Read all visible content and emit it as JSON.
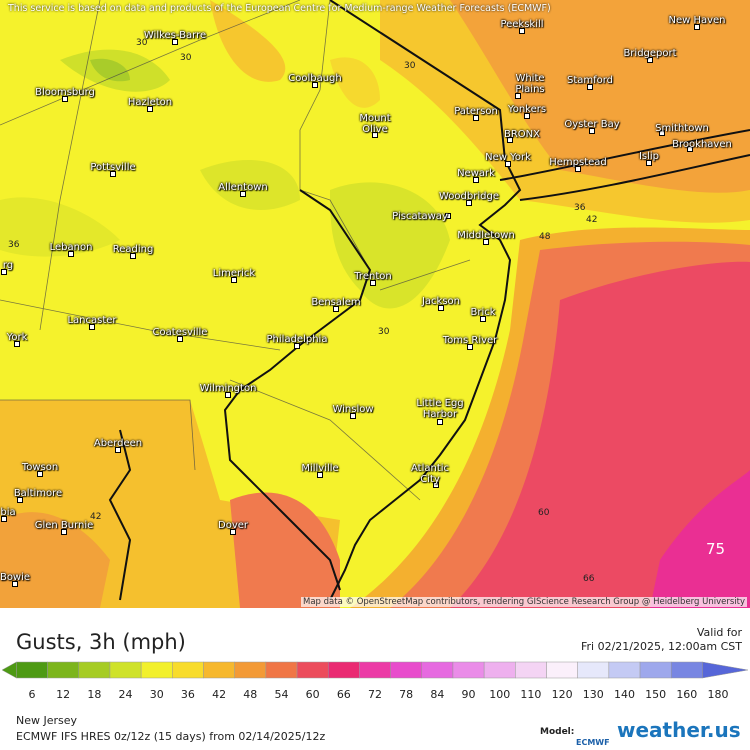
{
  "map": {
    "notice": "This service is based on data and products of the European Centre for Medium-range Weather Forecasts (ECMWF)",
    "attribution": "Map data © OpenStreetMap contributors, rendering GIScience Research Group @ Heidelberg University",
    "cities": [
      "Wilkes-Barre",
      "Bloomsburg",
      "Hazleton",
      "Coolbaugh",
      "Mount Olive",
      "Paterson",
      "Peekskill",
      "New Haven",
      "Bridgeport",
      "White Plains",
      "Stamford",
      "Yonkers",
      "BRONX",
      "Oyster Bay",
      "Smithtown",
      "Brookhaven",
      "New York",
      "Hempstead",
      "Islip",
      "Newark",
      "Pottsville",
      "Allentown",
      "Woodbridge",
      "Piscataway",
      "Middletown",
      "Lebanon",
      "Reading",
      "Limerick",
      "Trenton",
      "Bensalem",
      "Jackson",
      "Brick",
      "Lancaster",
      "Coatesville",
      "Philadelphia",
      "Toms River",
      "York",
      "Wilmington",
      "Winslow",
      "Little Egg Harbor",
      "Aberdeen",
      "Towson",
      "Millville",
      "Atlantic City",
      "Baltimore",
      "Glen Burnie",
      "Dover",
      "Bowie",
      "rg",
      "bia"
    ],
    "contour_labels": [
      30,
      30,
      30,
      36,
      30,
      36,
      42,
      48,
      42,
      60,
      66,
      75
    ]
  },
  "legend": {
    "title": "Gusts, 3h (mph)",
    "valid_label": "Valid for",
    "valid_time": "Fri 02/21/2025, 12:00am CST",
    "scale": [
      6,
      12,
      18,
      24,
      30,
      36,
      42,
      48,
      54,
      60,
      66,
      72,
      78,
      84,
      90,
      100,
      110,
      120,
      130,
      140,
      150,
      160,
      180
    ],
    "colors": [
      "#4e9a14",
      "#7cb51c",
      "#a6cc24",
      "#cfe22a",
      "#f2f02c",
      "#f8dc2c",
      "#f6b82e",
      "#f39a36",
      "#f07646",
      "#ec4c5c",
      "#ea2a72",
      "#ec3aa6",
      "#e84ccc",
      "#e66ae0",
      "#ea8ce8",
      "#eeb0ee",
      "#f4d4f4",
      "#fbf0fb",
      "#e6e8fb",
      "#c4caf4",
      "#9ea8ec",
      "#7886e2",
      "#5666d8"
    ]
  },
  "footer": {
    "region": "New Jersey",
    "run": "ECMWF IFS HRES 0z/12z (15 days) from 02/14/2025/12z",
    "model_label": "Model:",
    "model": "ECMWF",
    "brand": "weather.us"
  }
}
